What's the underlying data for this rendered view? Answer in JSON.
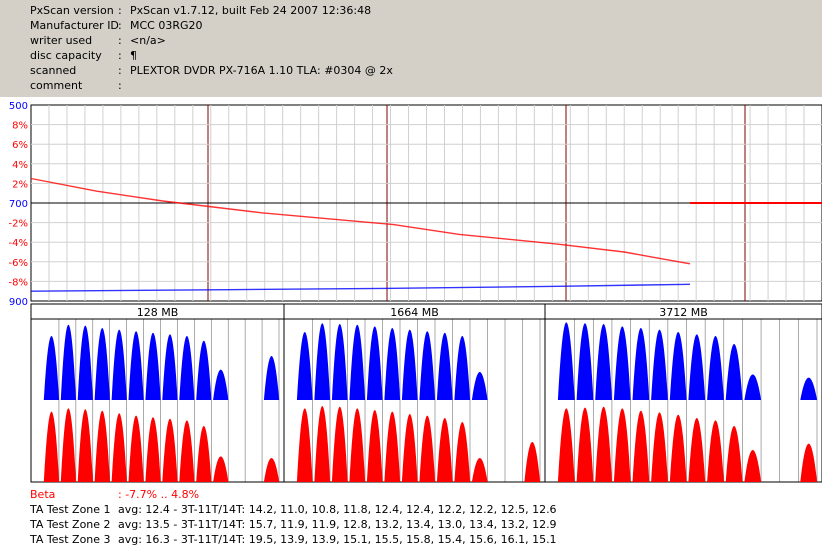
{
  "header": {
    "rows": [
      {
        "key": "PxScan version",
        "value": "PxScan v1.7.12, built Feb 24 2007 12:36:48"
      },
      {
        "key": "Manufacturer ID",
        "value": "MCC 03RG20"
      },
      {
        "key": "writer used",
        "value": "<n/a>"
      },
      {
        "key": "disc capacity",
        "value": "¶"
      },
      {
        "key": "scanned",
        "value": "PLEXTOR DVDR PX-716A 1.10 TLA: #0304 @ 2x"
      },
      {
        "key": "comment",
        "value": ""
      }
    ]
  },
  "chart_data": [
    {
      "type": "line",
      "y_left_ticks": [
        "500",
        "8%",
        "6%",
        "4%",
        "2%",
        "700",
        "-2%",
        "-4%",
        "-6%",
        "-8%",
        "900"
      ],
      "y_left_tick_colors": [
        "#0000ff",
        "#ff0000",
        "#ff0000",
        "#ff0000",
        "#ff0000",
        "#0000ff",
        "#ff0000",
        "#ff0000",
        "#ff0000",
        "#ff0000",
        "#0000ff"
      ],
      "red_ylim": [
        -10,
        10
      ],
      "blue_ylim": [
        900,
        500
      ],
      "grid": true,
      "series": [
        {
          "color": "#ff0000",
          "x": [
            0,
            0.1,
            0.2,
            0.35,
            0.55,
            0.65,
            0.8,
            0.9,
            0.95,
            1.0
          ],
          "values": [
            2.5,
            1.2,
            0.2,
            -1.0,
            -2.2,
            -3.2,
            -4.2,
            -5.0,
            -5.6,
            -6.2
          ]
        },
        {
          "color": "#0000ff",
          "x": [
            0,
            0.3,
            0.55,
            0.8,
            1.0
          ],
          "values": [
            880,
            877,
            874,
            870,
            866
          ]
        }
      ]
    },
    {
      "type": "bar",
      "zone_labels": [
        "128 MB",
        "1664 MB",
        "3712 MB"
      ],
      "zones": [
        {
          "blue": [
            0.8,
            0.94,
            0.93,
            0.9,
            0.88,
            0.86,
            0.84,
            0.82,
            0.8,
            0.74,
            0.38,
            0,
            0,
            0.55
          ],
          "red": [
            0.88,
            0.92,
            0.91,
            0.89,
            0.86,
            0.83,
            0.81,
            0.79,
            0.77,
            0.7,
            0.32,
            0,
            0,
            0.3
          ]
        },
        {
          "blue": [
            0.85,
            0.96,
            0.95,
            0.94,
            0.92,
            0.9,
            0.88,
            0.86,
            0.84,
            0.8,
            0.35,
            0,
            0,
            0
          ],
          "red": [
            0.92,
            0.95,
            0.94,
            0.92,
            0.9,
            0.88,
            0.85,
            0.83,
            0.8,
            0.75,
            0.3,
            0,
            0,
            0.5
          ]
        },
        {
          "blue": [
            0.97,
            0.96,
            0.95,
            0.92,
            0.9,
            0.88,
            0.85,
            0.82,
            0.8,
            0.7,
            0.32,
            0,
            0,
            0.28
          ],
          "red": [
            0.92,
            0.93,
            0.94,
            0.92,
            0.89,
            0.87,
            0.84,
            0.8,
            0.77,
            0.7,
            0.4,
            0,
            0,
            0.48
          ]
        }
      ]
    }
  ],
  "footer": {
    "beta_label": "Beta",
    "beta_value": ": -7.7% .. 4.8%",
    "zones": [
      {
        "label": "TA Test Zone 1",
        "value": "avg: 12.4 - 3T-11T/14T: 14.2, 11.0, 10.8, 11.8, 12.4, 12.4, 12.2, 12.2, 12.5, 12.6"
      },
      {
        "label": "TA Test Zone 2",
        "value": "avg: 13.5 - 3T-11T/14T: 15.7, 11.9, 11.9, 12.8, 13.2, 13.4, 13.0, 13.4, 13.2, 12.9"
      },
      {
        "label": "TA Test Zone 3",
        "value": "avg: 16.3 - 3T-11T/14T: 19.5, 13.9, 13.9, 15.1, 15.5, 15.8, 15.4, 15.6, 16.1, 15.1"
      }
    ]
  }
}
